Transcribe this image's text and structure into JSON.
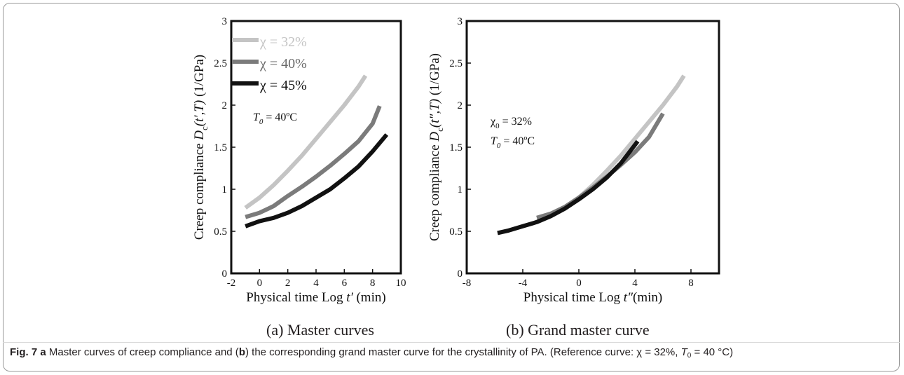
{
  "chart_data": [
    {
      "type": "line",
      "panel_label": "(a)",
      "panel_title": "Master curves",
      "xlabel": "Physical time Log t′ (min)",
      "ylabel": "Creep compliance Dc(t′,T) (1/GPa)",
      "xlim": [
        -2,
        10
      ],
      "ylim": [
        0,
        3
      ],
      "xticks": [
        "-2",
        "0",
        "2",
        "4",
        "6",
        "8",
        "10"
      ],
      "yticks": [
        "0",
        "0.5",
        "1",
        "1.5",
        "2",
        "2.5",
        "3"
      ],
      "grid": false,
      "legend_position": "top-left",
      "annotation": "T0 = 40ºC",
      "series": [
        {
          "name": "χ = 32%",
          "color": "#c4c4c4",
          "x": [
            -1,
            0,
            1,
            2,
            3,
            4,
            5,
            6,
            7,
            7.5
          ],
          "y": [
            0.78,
            0.9,
            1.05,
            1.22,
            1.4,
            1.6,
            1.8,
            2.0,
            2.22,
            2.35
          ]
        },
        {
          "name": "χ = 40%",
          "color": "#7b7b7b",
          "x": [
            -1,
            0,
            1,
            2,
            3,
            4,
            5,
            6,
            7,
            8,
            8.5
          ],
          "y": [
            0.67,
            0.72,
            0.8,
            0.92,
            1.03,
            1.15,
            1.28,
            1.42,
            1.57,
            1.78,
            1.99
          ]
        },
        {
          "name": "χ = 45%",
          "color": "#111111",
          "x": [
            -1,
            0,
            1,
            2,
            3,
            4,
            5,
            6,
            7,
            8,
            9
          ],
          "y": [
            0.56,
            0.62,
            0.66,
            0.72,
            0.8,
            0.9,
            1.0,
            1.13,
            1.27,
            1.45,
            1.65
          ]
        }
      ]
    },
    {
      "type": "line",
      "panel_label": "(b)",
      "panel_title": "Grand master curve",
      "xlabel": "Physical time Log t″(min)",
      "ylabel": "Creep compliance Dc(t″,T) (1/GPa)",
      "xlim": [
        -8,
        10
      ],
      "ylim": [
        0,
        3
      ],
      "xticks": [
        "-8",
        "-4",
        "0",
        "4",
        "8"
      ],
      "yticks": [
        "0",
        "0.5",
        "1",
        "1.5",
        "2",
        "2.5",
        "3"
      ],
      "grid": false,
      "annotations": [
        "χ0 = 32%",
        "T0 = 40ºC"
      ],
      "series": [
        {
          "name": "χ = 32%",
          "color": "#c4c4c4",
          "x": [
            -1,
            0,
            1,
            2,
            3,
            4,
            5,
            6,
            7,
            7.5
          ],
          "y": [
            0.78,
            0.9,
            1.05,
            1.22,
            1.4,
            1.6,
            1.8,
            2.0,
            2.22,
            2.35
          ]
        },
        {
          "name": "χ = 40%",
          "color": "#7b7b7b",
          "x": [
            -3,
            -2,
            -1,
            0,
            1,
            2,
            3,
            4,
            5,
            6
          ],
          "y": [
            0.66,
            0.71,
            0.79,
            0.9,
            1.02,
            1.15,
            1.29,
            1.44,
            1.62,
            1.9
          ]
        },
        {
          "name": "χ = 45%",
          "color": "#111111",
          "x": [
            -5.8,
            -5,
            -4,
            -3,
            -2,
            -1,
            0,
            1,
            2,
            3,
            4.2
          ],
          "y": [
            0.48,
            0.51,
            0.56,
            0.61,
            0.68,
            0.77,
            0.88,
            1.0,
            1.14,
            1.31,
            1.57
          ]
        }
      ]
    }
  ],
  "caption": {
    "fig_label": "Fig. 7",
    "a_label": "a",
    "text_1": " Master curves of creep compliance and (",
    "b_label": "b",
    "text_2": ") the corresponding grand master curve for the crystallinity of PA. (Reference curve: χ = 32%, ",
    "t_symbol": "T",
    "t_sub": "0",
    "text_3": " = 40 °C)"
  },
  "labels": {
    "a_xlabel_main": "Physical time Log",
    "a_xlabel_var": "t′",
    "a_xlabel_unit": "(min)",
    "a_ylabel_main": "Creep compliance",
    "a_ylabel_d": "D",
    "a_ylabel_sub": "c",
    "a_ylabel_args": "(t′,T)",
    "a_ylabel_unit": "(1/GPa)",
    "b_xlabel_main": "Physical time Log",
    "b_xlabel_var": "t″",
    "b_xlabel_unit": "(min)",
    "b_ylabel_main": "Creep compliance",
    "b_ylabel_d": "D",
    "b_ylabel_sub": "c",
    "b_ylabel_args": "(t″,T)",
    "b_ylabel_unit": "(1/GPa)",
    "a_ann_t": "T",
    "a_ann_sub": "0",
    "a_ann_rest": " = 40ºC",
    "b_ann_chi": "χ",
    "b_ann_chi_sub": "0",
    "b_ann_chi_rest": " = 32%",
    "b_ann_t": "T",
    "b_ann_t_sub": "0",
    "b_ann_t_rest": " = 40ºC",
    "a_panel_label": "(a)",
    "a_panel_title": "Master curves",
    "b_panel_label": "(b)",
    "b_panel_title": "Grand master curve",
    "legend_1": "χ = 32%",
    "legend_2": "χ = 40%",
    "legend_3": "χ = 45%"
  }
}
